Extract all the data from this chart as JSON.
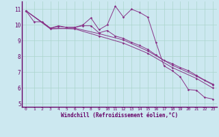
{
  "xlabel": "Windchill (Refroidissement éolien,°C)",
  "bg_color": "#cce8f0",
  "line_color": "#883388",
  "grid_color": "#aad4cc",
  "xlim": [
    -0.5,
    23.5
  ],
  "ylim": [
    4.8,
    11.5
  ],
  "yticks": [
    5,
    6,
    7,
    8,
    9,
    10,
    11
  ],
  "xticks": [
    0,
    1,
    2,
    3,
    4,
    5,
    6,
    7,
    8,
    9,
    10,
    11,
    12,
    13,
    14,
    15,
    16,
    17,
    18,
    19,
    20,
    21,
    22,
    23
  ],
  "series1_x": [
    0,
    1,
    2,
    3,
    4,
    5,
    6,
    7,
    8,
    9,
    10,
    11,
    12,
    13,
    14,
    15,
    16,
    17,
    18,
    19,
    20,
    21,
    22,
    23
  ],
  "series1_y": [
    10.9,
    10.2,
    10.2,
    9.8,
    9.9,
    9.85,
    9.85,
    10.0,
    10.45,
    9.7,
    10.0,
    11.2,
    10.5,
    11.0,
    10.8,
    10.5,
    8.9,
    7.4,
    7.1,
    6.7,
    5.9,
    5.85,
    5.4,
    5.3
  ],
  "series2_x": [
    0,
    3,
    4,
    5,
    6,
    7,
    8,
    9,
    10,
    11,
    12,
    13,
    14,
    15,
    16,
    17,
    18,
    19,
    20,
    21,
    22,
    23
  ],
  "series2_y": [
    10.9,
    9.8,
    9.95,
    9.85,
    9.85,
    9.95,
    9.95,
    9.5,
    9.65,
    9.3,
    9.15,
    8.9,
    8.7,
    8.45,
    8.1,
    7.75,
    7.55,
    7.3,
    7.1,
    6.8,
    6.5,
    6.25
  ],
  "series3_x": [
    0,
    3,
    6,
    9,
    12,
    15,
    18,
    21,
    23
  ],
  "series3_y": [
    10.9,
    9.75,
    9.8,
    9.45,
    9.05,
    8.35,
    7.45,
    6.75,
    6.2
  ],
  "series4_x": [
    0,
    3,
    6,
    9,
    12,
    15,
    18,
    21,
    23
  ],
  "series4_y": [
    10.9,
    9.8,
    9.75,
    9.3,
    8.85,
    8.2,
    7.3,
    6.6,
    6.0
  ],
  "spine_color": "#660066",
  "tick_color": "#660066",
  "label_color": "#660066"
}
